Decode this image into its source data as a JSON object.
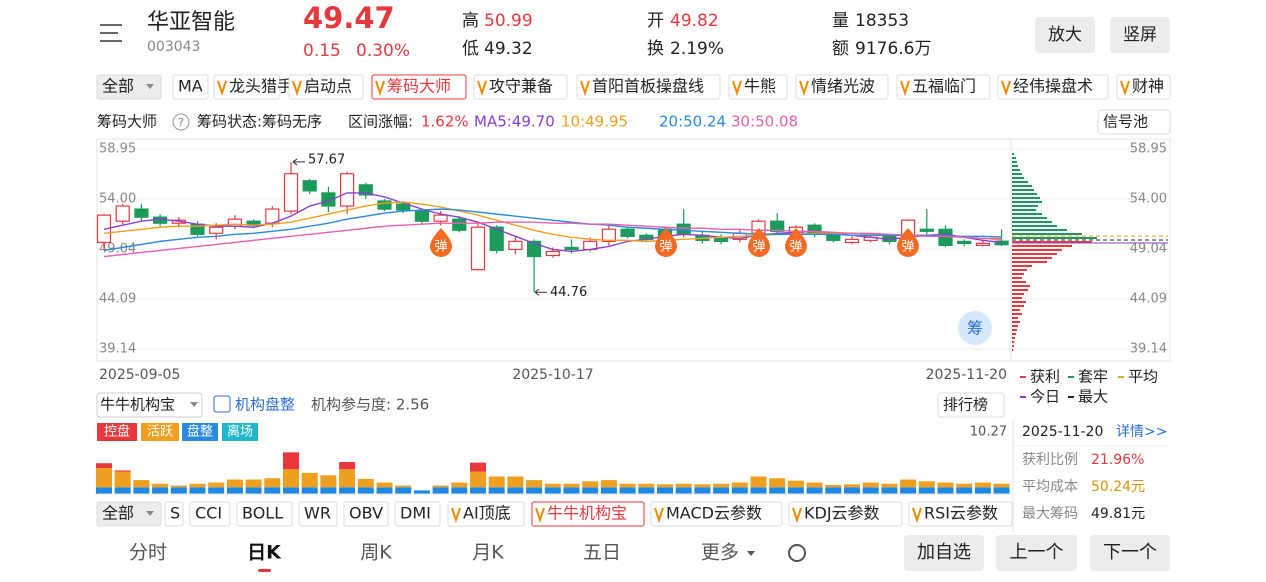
{
  "header": {
    "name": "华亚智能",
    "code": "003043",
    "price": "49.47",
    "change": "0.15",
    "change_pct": "0.30%",
    "high_label": "高",
    "high": "50.99",
    "low_label": "低",
    "low": "49.32",
    "open_label": "开",
    "open": "49.82",
    "turnover_label": "换",
    "turnover": "2.19%",
    "volume_label": "量",
    "volume": "18353",
    "amount_label": "额",
    "amount": "9176.6万",
    "buttons": [
      "放大",
      "竖屏"
    ]
  },
  "indicator_tabs": [
    "全部",
    "MA",
    "龙头猎手",
    "启动点",
    "筹码大师",
    "攻守兼备",
    "首阳首板操盘线",
    "牛熊",
    "情绪光波",
    "五福临门",
    "经伟操盘术",
    "财神"
  ],
  "legend": {
    "name": "筹码大师",
    "status": "筹码状态:筹码无序",
    "range_label": "区间涨幅:",
    "range_value": "1.62%",
    "ma5": "MA5:49.70",
    "ma10": "10:49.95",
    "ma20": "20:50.24",
    "ma30": "30:50.08",
    "signal_button": "信号池"
  },
  "kline": {
    "ylim": [
      39.14,
      58.95
    ],
    "yticks": [
      58.95,
      {
        "value": 54,
        "label": "54.00"
      },
      49.04,
      44.09,
      39.14
    ],
    "dates": [
      "2025-09-05",
      "2025-10-17",
      "2025-11-20"
    ],
    "max_price": 57.67,
    "min_price": 44.76,
    "signal_label": "弹",
    "badge": "筹",
    "candles": [
      [
        49.7,
        52.4,
        52.5,
        49.0
      ],
      [
        51.8,
        53.3,
        53.5,
        51.5
      ],
      [
        53.0,
        52.2,
        53.5,
        51.8
      ],
      [
        52.2,
        51.6,
        52.5,
        51.3
      ],
      [
        51.6,
        51.9,
        52.2,
        51.2
      ],
      [
        51.5,
        50.5,
        51.8,
        50.3
      ],
      [
        50.6,
        51.2,
        51.6,
        50.0
      ],
      [
        51.3,
        52.0,
        52.4,
        51.0
      ],
      [
        51.8,
        51.4,
        52.0,
        51.2
      ],
      [
        51.6,
        53.0,
        53.3,
        51.2
      ],
      [
        52.8,
        56.5,
        57.67,
        52.5
      ],
      [
        55.8,
        54.8,
        56.0,
        54.5
      ],
      [
        54.6,
        53.3,
        55.2,
        52.7
      ],
      [
        53.3,
        56.5,
        56.7,
        52.5
      ],
      [
        55.4,
        54.4,
        55.6,
        54.0
      ],
      [
        53.8,
        53.0,
        54.0,
        52.8
      ],
      [
        53.5,
        52.9,
        53.8,
        52.6
      ],
      [
        52.8,
        51.8,
        53.0,
        51.5
      ],
      [
        51.8,
        52.4,
        52.8,
        51.4
      ],
      [
        52.0,
        50.9,
        52.3,
        50.7
      ],
      [
        47.0,
        51.2,
        51.5,
        46.9
      ],
      [
        51.2,
        48.9,
        51.4,
        48.6
      ],
      [
        49.0,
        49.8,
        50.2,
        48.5
      ],
      [
        49.8,
        48.3,
        50.0,
        44.76
      ],
      [
        48.4,
        48.8,
        49.2,
        48.2
      ],
      [
        49.2,
        49.0,
        50.0,
        48.6
      ],
      [
        49.0,
        49.8,
        50.2,
        48.8
      ],
      [
        49.8,
        51.0,
        51.4,
        49.4
      ],
      [
        51.0,
        50.3,
        51.2,
        50.1
      ],
      [
        50.4,
        50.0,
        50.6,
        49.8
      ],
      [
        51.0,
        50.3,
        51.2,
        50.0
      ],
      [
        51.5,
        50.5,
        53.0,
        50.2
      ],
      [
        50.4,
        49.9,
        50.8,
        49.6
      ],
      [
        50.2,
        49.8,
        50.5,
        49.5
      ],
      [
        50.0,
        50.6,
        51.0,
        49.7
      ],
      [
        50.6,
        51.8,
        52.0,
        50.4
      ],
      [
        51.8,
        50.8,
        52.6,
        50.5
      ],
      [
        50.5,
        51.2,
        51.4,
        50.3
      ],
      [
        51.4,
        50.5,
        51.6,
        50.2
      ],
      [
        50.4,
        49.9,
        50.6,
        49.7
      ],
      [
        49.7,
        50.0,
        50.3,
        49.5
      ],
      [
        49.9,
        50.2,
        50.4,
        49.7
      ],
      [
        50.3,
        49.8,
        50.5,
        49.5
      ],
      [
        50.3,
        51.9,
        52.0,
        50.0
      ],
      [
        51.0,
        50.8,
        53.0,
        50.5
      ],
      [
        51.0,
        49.4,
        51.4,
        49.2
      ],
      [
        49.8,
        49.6,
        50.0,
        49.3
      ],
      [
        49.4,
        49.6,
        50.0,
        49.3
      ],
      [
        49.82,
        49.47,
        50.99,
        49.32
      ]
    ],
    "ma5": [
      51.0,
      51.4,
      51.8,
      52.0,
      51.8,
      51.5,
      51.3,
      51.3,
      51.2,
      51.6,
      52.3,
      53.3,
      53.8,
      54.6,
      54.6,
      54.2,
      53.6,
      53.0,
      52.5,
      52.2,
      51.7,
      51.0,
      50.3,
      49.6,
      49.0,
      48.8,
      49.0,
      49.3,
      49.8,
      50.0,
      50.3,
      50.5,
      50.4,
      50.2,
      50.1,
      50.4,
      50.6,
      50.7,
      50.8,
      50.6,
      50.4,
      50.2,
      50.0,
      50.2,
      50.4,
      50.5,
      50.2,
      49.9,
      49.7
    ],
    "ma10": [
      50.6,
      50.8,
      51.0,
      51.2,
      51.3,
      51.3,
      51.4,
      51.5,
      51.4,
      51.5,
      51.7,
      52.1,
      52.5,
      52.9,
      53.3,
      53.6,
      53.7,
      53.5,
      53.2,
      52.8,
      52.4,
      51.9,
      51.4,
      50.9,
      50.5,
      50.2,
      50.0,
      49.9,
      49.9,
      49.8,
      49.9,
      50.0,
      50.1,
      50.2,
      50.3,
      50.4,
      50.5,
      50.5,
      50.6,
      50.6,
      50.6,
      50.5,
      50.4,
      50.4,
      50.4,
      50.3,
      50.2,
      50.1,
      49.95
    ],
    "ma20": [
      48.9,
      49.2,
      49.5,
      49.8,
      50.0,
      50.2,
      50.3,
      50.5,
      50.6,
      50.8,
      51.0,
      51.3,
      51.6,
      52.0,
      52.3,
      52.6,
      52.8,
      52.9,
      53.0,
      52.9,
      52.7,
      52.5,
      52.3,
      52.1,
      51.9,
      51.7,
      51.5,
      51.4,
      51.2,
      51.1,
      51.0,
      50.9,
      50.8,
      50.7,
      50.6,
      50.5,
      50.5,
      50.5,
      50.5,
      50.5,
      50.4,
      50.4,
      50.4,
      50.4,
      50.4,
      50.3,
      50.3,
      50.3,
      50.24
    ],
    "ma30": [
      48.3,
      48.5,
      48.7,
      48.9,
      49.1,
      49.3,
      49.5,
      49.7,
      49.9,
      50.1,
      50.3,
      50.5,
      50.7,
      50.9,
      51.1,
      51.3,
      51.4,
      51.5,
      51.6,
      51.6,
      51.6,
      51.7,
      51.7,
      51.7,
      51.6,
      51.6,
      51.5,
      51.5,
      51.4,
      51.3,
      51.2,
      51.1,
      51.1,
      51.0,
      51.0,
      50.9,
      50.9,
      50.8,
      50.8,
      50.7,
      50.6,
      50.6,
      50.5,
      50.4,
      50.3,
      50.3,
      50.2,
      50.1,
      50.08
    ],
    "chips": {
      "trapped": [
        2,
        4,
        5,
        6,
        8,
        10,
        12,
        16,
        20,
        22,
        25,
        28,
        30,
        26,
        24,
        30,
        35,
        40,
        45,
        55,
        70,
        85
      ],
      "profit": [
        80,
        60,
        50,
        45,
        40,
        35,
        20,
        15,
        12,
        10,
        14,
        18,
        16,
        12,
        10,
        14,
        12,
        8,
        10,
        6,
        8,
        6,
        5,
        4,
        3,
        2,
        2,
        1
      ]
    },
    "chip_legend": [
      "获利",
      "套牢",
      "平均",
      "今日",
      "最大"
    ]
  },
  "institution": {
    "selector": "牛牛机构宝",
    "state": "机构盘整",
    "participation": "机构参与度: 2.56",
    "rank_button": "排行榜",
    "tags": [
      "控盘",
      "活跃",
      "盘整",
      "离场"
    ],
    "ylim": [
      0,
      10.27
    ],
    "ymax_label": "10.27",
    "blue": [
      1.1,
      1.1,
      1.1,
      1.1,
      1.1,
      1.1,
      1.1,
      1.1,
      1.1,
      1.1,
      1.1,
      1.1,
      1.1,
      1.1,
      1.1,
      1.1,
      1.1,
      0.6,
      1.1,
      1.1,
      1.1,
      1.1,
      1.1,
      1.1,
      1.1,
      1.1,
      1.1,
      1.1,
      1.1,
      1.1,
      1.1,
      1.1,
      1.1,
      1.1,
      1.1,
      1.1,
      1.1,
      1.1,
      1.1,
      1.1,
      1.1,
      1.1,
      1.1,
      1.1,
      1.1,
      1.1,
      1.1,
      1.1,
      1.1
    ],
    "orange": [
      3.2,
      2.6,
      1.2,
      0.6,
      0.3,
      0.6,
      0.8,
      1.3,
      1.3,
      1.5,
      3.0,
      2.4,
      2.0,
      3.0,
      1.4,
      0.8,
      0.3,
      0,
      0.3,
      0.8,
      2.6,
      1.8,
      1.8,
      1.2,
      0.6,
      0.6,
      1.0,
      1.2,
      0.6,
      0.6,
      0.5,
      0.6,
      0.5,
      0.6,
      0.8,
      1.8,
      1.5,
      1.1,
      0.8,
      0.4,
      0.5,
      0.8,
      0.6,
      1.3,
      1.0,
      0.8,
      0.6,
      0.8,
      0.6
    ],
    "red": [
      0.8,
      0.2,
      0,
      0,
      0,
      0,
      0,
      0,
      0,
      0,
      2.8,
      0,
      0,
      1.2,
      0,
      0,
      0,
      0,
      0,
      0,
      1.5,
      0,
      0,
      0,
      0,
      0,
      0,
      0,
      0,
      0,
      0,
      0,
      0,
      0,
      0,
      0,
      0,
      0,
      0,
      0,
      0,
      0,
      0,
      0,
      0,
      0,
      0,
      0,
      0
    ]
  },
  "chip_panel": {
    "date": "2025-11-20",
    "detail": "详情>>",
    "rows": [
      [
        "获利比例",
        "21.96%"
      ],
      [
        "平均成本",
        "50.24元"
      ],
      [
        "最大筹码",
        "49.81元"
      ]
    ]
  },
  "bottom_tabs": [
    "全部",
    "S",
    "CCI",
    "BOLL",
    "WR",
    "OBV",
    "DMI",
    "AI顶底",
    "牛牛机构宝",
    "MACD云参数",
    "KDJ云参数",
    "RSI云参数"
  ],
  "nav": {
    "tabs": [
      "分时",
      "日K",
      "周K",
      "月K",
      "五日",
      "更多"
    ],
    "buttons": [
      "加自选",
      "上一个",
      "下一个"
    ]
  }
}
